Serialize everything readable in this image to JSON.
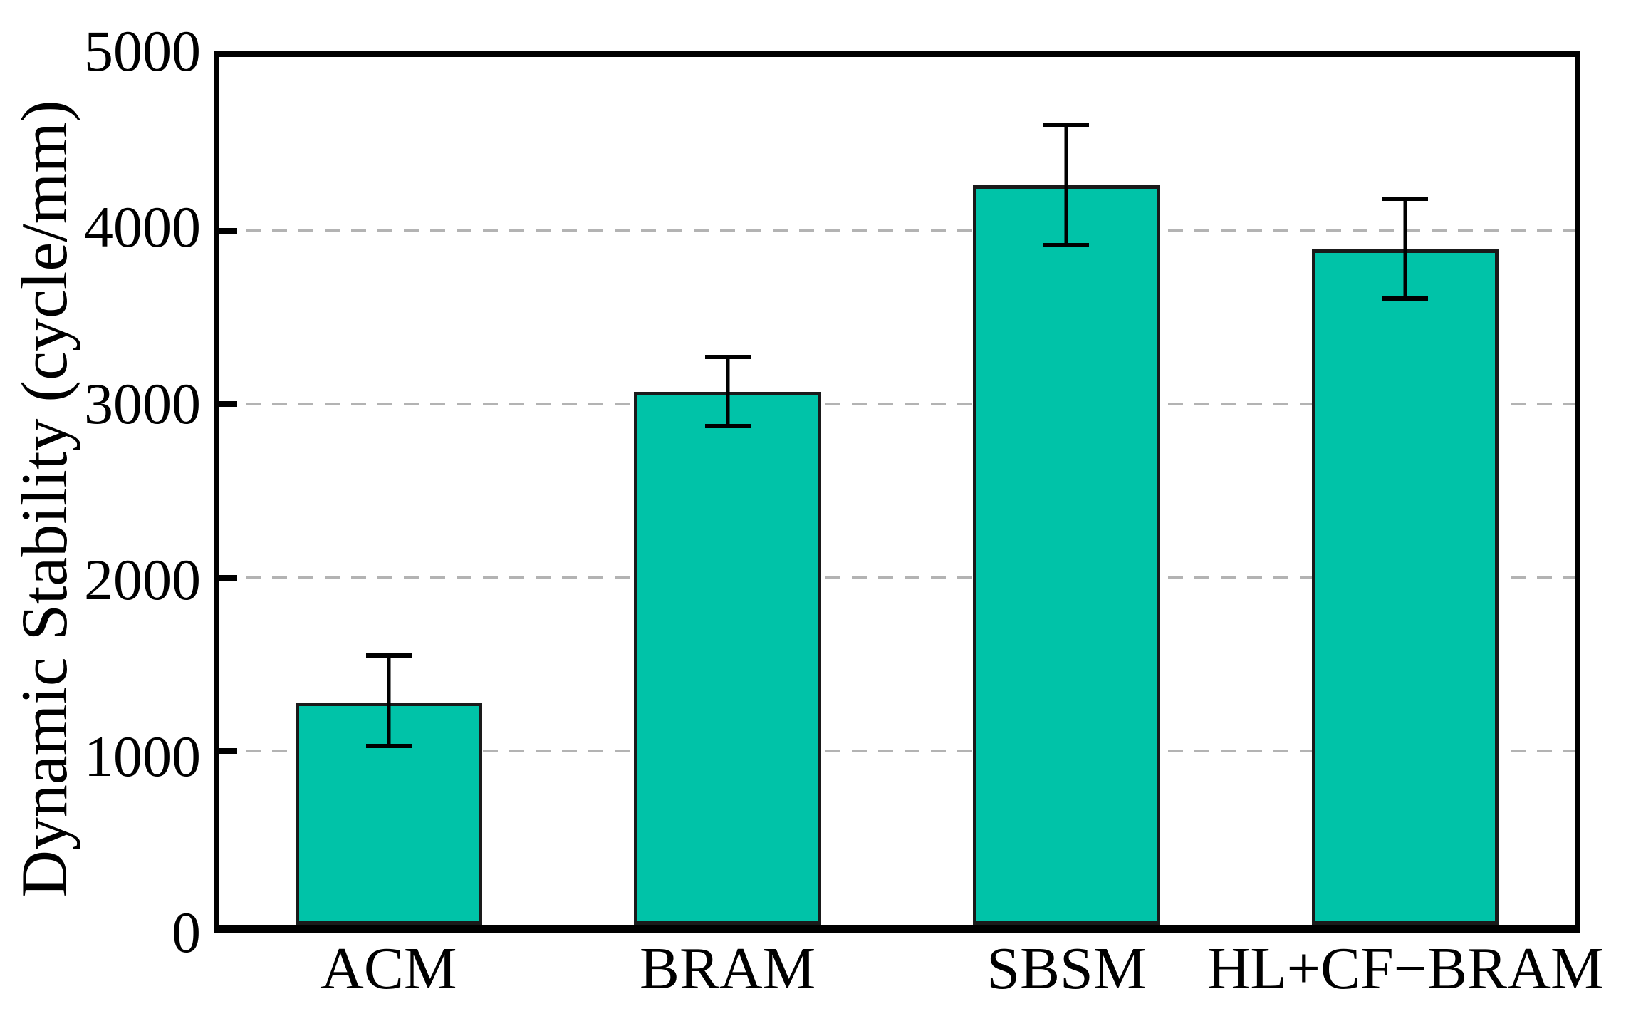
{
  "figure": {
    "background_color": "#ffffff",
    "axis_color": "#000000"
  },
  "chart_data": {
    "type": "bar",
    "title": "",
    "xlabel": "",
    "ylabel": "Dynamic Stability (cycle/mm)",
    "categories": [
      "ACM",
      "BRAM",
      "SBSM",
      "HL+CF−BRAM"
    ],
    "values": [
      1280,
      3070,
      4260,
      3890
    ],
    "error_plus": [
      270,
      200,
      350,
      295
    ],
    "error_minus": [
      250,
      195,
      345,
      280
    ],
    "ylim": [
      0,
      5000
    ],
    "yticks": [
      0,
      1000,
      2000,
      3000,
      4000,
      5000
    ],
    "grid": "horizontal dashed lines at 1000, 2000, 3000, 4000",
    "legend_position": "none",
    "bar_color": "#00C3A8",
    "bar_edge_color": "#1a1a1a",
    "grid_color": "#b3b3b3",
    "error_bar_color": "#000000",
    "bar_width_fraction": 0.138
  }
}
